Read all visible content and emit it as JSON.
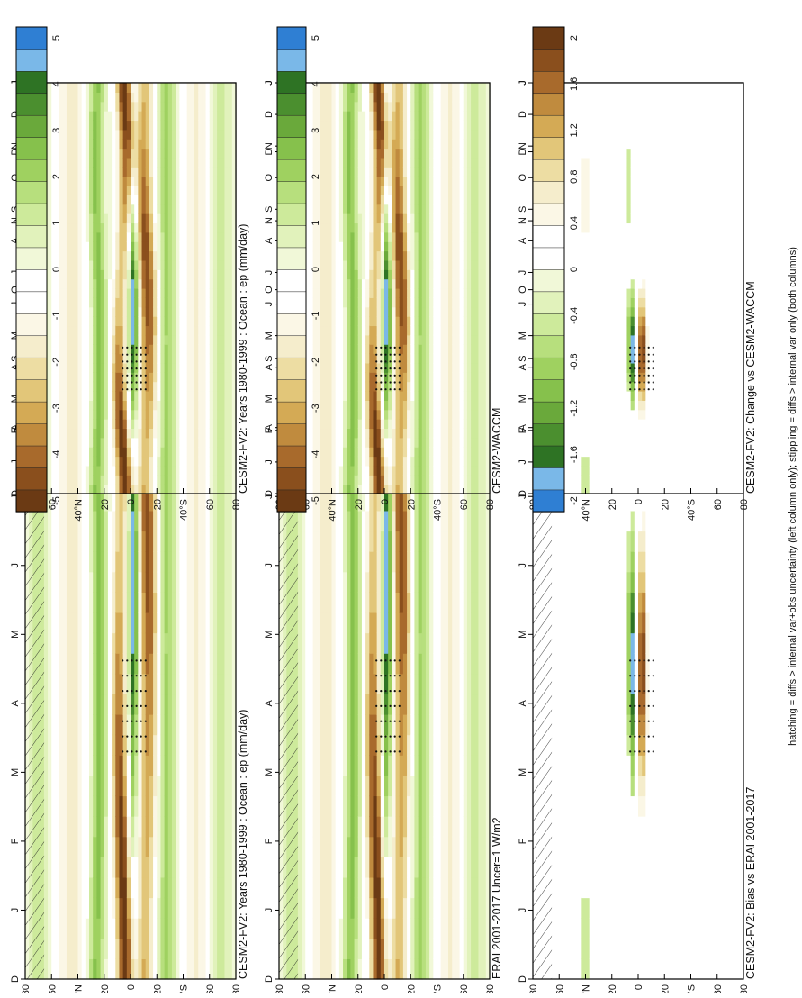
{
  "footer_note": "hatching = diffs > internal var+obs uncertainty (left column only); stippling = diffs > internal var only (both columns)",
  "chart_data": [
    {
      "type": "heatmap",
      "title": "CESM2-FV2: Years 1980-1999 : Ocean : ep (mm/day)",
      "x_ticks": [
        "D",
        "J",
        "F",
        "M",
        "A",
        "M",
        "J",
        "J",
        "A",
        "S",
        "O",
        "N",
        "D",
        "J"
      ],
      "y_ticks": [
        "80",
        "60",
        "40°N",
        "20",
        "0",
        "20",
        "40°S",
        "60",
        "80"
      ],
      "colorbar_ticks": [
        "5",
        "4",
        "3",
        "2",
        "1",
        "0",
        "-1",
        "-2",
        "-3",
        "-4",
        "-5"
      ],
      "colorbar_colors": [
        "#6b3a14",
        "#8a4f1d",
        "#a86a2c",
        "#c08b3e",
        "#d4aa55",
        "#e2c679",
        "#eddda3",
        "#f5edcc",
        "#fbf7e6",
        "#ffffff",
        "#ffffff",
        "#f1f8d8",
        "#e1f2bb",
        "#cdea9b",
        "#b7df7d",
        "#9fd160",
        "#86c14c",
        "#6aa93b",
        "#4b8f2f",
        "#2e7324",
        "#7ab8e8",
        "#2f7fd3"
      ],
      "itcz_peak": 5,
      "spcz_peak": 4.5,
      "dry_min": -5,
      "hatching": true,
      "stippling": true
    },
    {
      "type": "heatmap",
      "title": "CESM2-FV2: Years 1980-1999 : Ocean : ep (mm/day)",
      "x_ticks": [
        "D",
        "J",
        "F",
        "M",
        "A",
        "M",
        "J",
        "J",
        "A",
        "S",
        "O",
        "N",
        "D",
        "J"
      ],
      "y_ticks": [
        "80",
        "60",
        "40°N",
        "20",
        "0",
        "20",
        "40°S",
        "60",
        "80"
      ],
      "colorbar_ticks": [
        "5",
        "4",
        "3",
        "2",
        "1",
        "0",
        "-1",
        "-2",
        "-3",
        "-4",
        "-5"
      ],
      "itcz_peak": 5,
      "spcz_peak": 4.5,
      "dry_min": -5,
      "hatching": false,
      "stippling": true
    },
    {
      "type": "heatmap",
      "title": "ERAI 2001-2017 Uncer=1 W/m2",
      "x_ticks": [
        "D",
        "J",
        "F",
        "M",
        "A",
        "M",
        "J",
        "J",
        "A",
        "S",
        "O",
        "N",
        "D",
        "J"
      ],
      "y_ticks": [
        "80",
        "60",
        "40°N",
        "20",
        "0",
        "20",
        "40°S",
        "60",
        "80"
      ],
      "colorbar_ticks": [
        "5",
        "4",
        "3",
        "2",
        "1",
        "0",
        "-1",
        "-2",
        "-3",
        "-4",
        "-5"
      ],
      "itcz_peak": 5,
      "spcz_peak": 4.5,
      "dry_min": -5,
      "hatching": true,
      "stippling": true
    },
    {
      "type": "heatmap",
      "title": "CESM2-WACCM",
      "x_ticks": [
        "D",
        "J",
        "F",
        "M",
        "A",
        "M",
        "J",
        "J",
        "A",
        "S",
        "O",
        "N",
        "D",
        "J"
      ],
      "y_ticks": [
        "80",
        "60",
        "40°N",
        "20",
        "0",
        "20",
        "40°S",
        "60",
        "80"
      ],
      "colorbar_ticks": [
        "5",
        "4",
        "3",
        "2",
        "1",
        "0",
        "-1",
        "-2",
        "-3",
        "-4",
        "-5"
      ],
      "itcz_peak": 5,
      "spcz_peak": 4.5,
      "dry_min": -5,
      "hatching": false,
      "stippling": true
    },
    {
      "type": "heatmap",
      "title": "CESM2-FV2: Bias vs ERAI 2001-2017",
      "x_ticks": [
        "D",
        "J",
        "F",
        "M",
        "A",
        "M",
        "J",
        "J",
        "A",
        "S",
        "O",
        "N",
        "D",
        "J"
      ],
      "y_ticks": [
        "80",
        "60",
        "40°N",
        "20",
        "0",
        "20",
        "40°S",
        "60",
        "80"
      ],
      "colorbar_ticks": [
        "2",
        "1.6",
        "1.2",
        "0.8",
        "0.4",
        "0",
        "-0.4",
        "-0.8",
        "-1.2",
        "-1.6",
        "-2"
      ],
      "itcz_peak": 2,
      "spcz_peak": 1,
      "dry_min": -2,
      "hatching": true,
      "stippling": true
    },
    {
      "type": "heatmap",
      "title": "CESM2-FV2: Change vs CESM2-WACCM",
      "x_ticks": [
        "D",
        "J",
        "F",
        "M",
        "A",
        "M",
        "J",
        "J",
        "A",
        "S",
        "O",
        "N",
        "D",
        "J"
      ],
      "y_ticks": [
        "80",
        "60",
        "40°N",
        "20",
        "0",
        "20",
        "40°S",
        "60",
        "80"
      ],
      "colorbar_ticks": [
        "2",
        "1.6",
        "1.2",
        "0.8",
        "0.4",
        "0",
        "-0.4",
        "-0.8",
        "-1.2",
        "-1.6",
        "-2"
      ],
      "itcz_peak": 2,
      "spcz_peak": 1,
      "dry_min": -2,
      "hatching": false,
      "stippling": true
    }
  ]
}
